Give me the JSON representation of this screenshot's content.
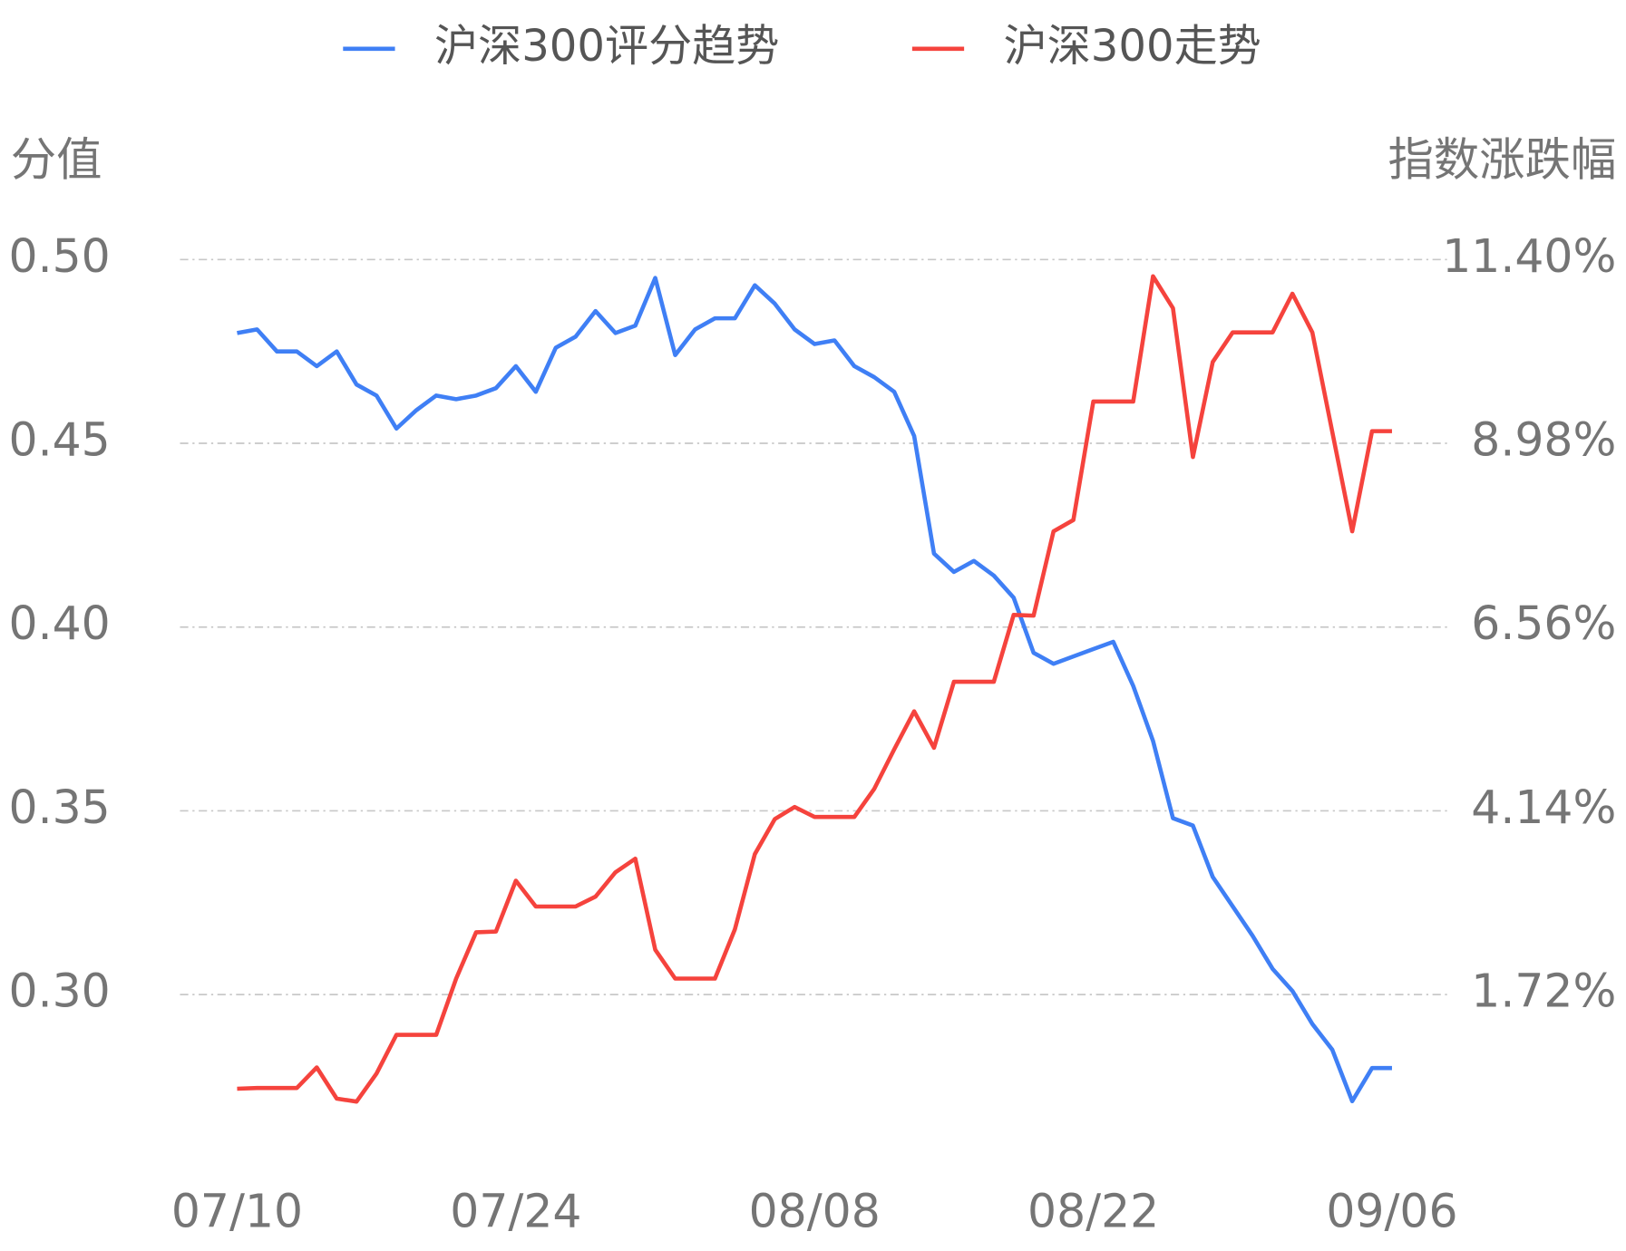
{
  "chart_data": {
    "type": "line",
    "legend_position": "top",
    "y_axis_title": "分值",
    "y2_axis_title": "指数涨跌幅",
    "categories": [
      "07/10",
      null,
      null,
      null,
      null,
      null,
      null,
      null,
      null,
      null,
      null,
      null,
      null,
      null,
      "07/24",
      null,
      null,
      null,
      null,
      null,
      null,
      null,
      null,
      null,
      null,
      null,
      null,
      null,
      null,
      "08/08",
      null,
      null,
      null,
      null,
      null,
      null,
      null,
      null,
      null,
      null,
      null,
      null,
      null,
      "08/22",
      null,
      null,
      null,
      null,
      null,
      null,
      null,
      null,
      null,
      null,
      null,
      null,
      null,
      null,
      "09/06"
    ],
    "series": [
      {
        "name": "沪深300评分趋势",
        "color": "#3f7ff5",
        "axis": "y",
        "values": [
          0.48,
          0.481,
          0.475,
          0.475,
          0.471,
          0.475,
          0.466,
          0.463,
          0.454,
          0.459,
          0.463,
          0.462,
          0.463,
          0.465,
          0.471,
          0.464,
          0.476,
          0.479,
          0.486,
          0.48,
          0.482,
          0.495,
          0.474,
          0.481,
          0.484,
          0.484,
          0.493,
          0.488,
          0.481,
          0.477,
          0.478,
          0.471,
          0.468,
          0.464,
          0.452,
          0.42,
          0.415,
          0.418,
          0.414,
          0.408,
          0.393,
          0.39,
          0.392,
          0.394,
          0.396,
          0.384,
          0.369,
          0.348,
          0.346,
          0.332,
          0.324,
          0.316,
          0.307,
          0.301,
          0.292,
          0.285,
          0.271,
          0.28,
          0.28
        ]
      },
      {
        "name": "沪深300走势",
        "color": "#f5433d",
        "axis": "y2",
        "values": [
          0.48,
          0.49,
          0.49,
          0.49,
          0.76,
          0.35,
          0.31,
          0.68,
          1.19,
          1.19,
          1.19,
          1.93,
          2.54,
          2.55,
          3.22,
          2.88,
          2.88,
          2.88,
          3.01,
          3.33,
          3.51,
          2.31,
          1.93,
          1.93,
          1.93,
          2.58,
          3.57,
          4.03,
          4.19,
          4.06,
          4.06,
          4.06,
          4.43,
          4.95,
          5.45,
          4.97,
          5.84,
          5.84,
          5.84,
          6.72,
          6.71,
          7.82,
          7.97,
          9.53,
          9.53,
          9.53,
          11.18,
          10.76,
          8.8,
          10.05,
          10.44,
          10.44,
          10.44,
          10.95,
          10.44,
          9.13,
          7.82,
          9.14,
          9.14
        ]
      }
    ],
    "ylim": [
      0.25,
      0.5
    ],
    "yticks": [
      {
        "value": 0.3,
        "label": "0.30"
      },
      {
        "value": 0.35,
        "label": "0.35"
      },
      {
        "value": 0.4,
        "label": "0.40"
      },
      {
        "value": 0.45,
        "label": "0.45"
      },
      {
        "value": 0.5,
        "label": "0.50"
      }
    ],
    "y2lim": [
      -0.7,
      11.4
    ],
    "y2ticks": [
      {
        "value": 1.72,
        "label": "1.72%"
      },
      {
        "value": 4.14,
        "label": "4.14%"
      },
      {
        "value": 6.56,
        "label": "6.56%"
      },
      {
        "value": 8.98,
        "label": "8.98%"
      },
      {
        "value": 11.4,
        "label": "11.40%"
      }
    ],
    "grid": true
  }
}
